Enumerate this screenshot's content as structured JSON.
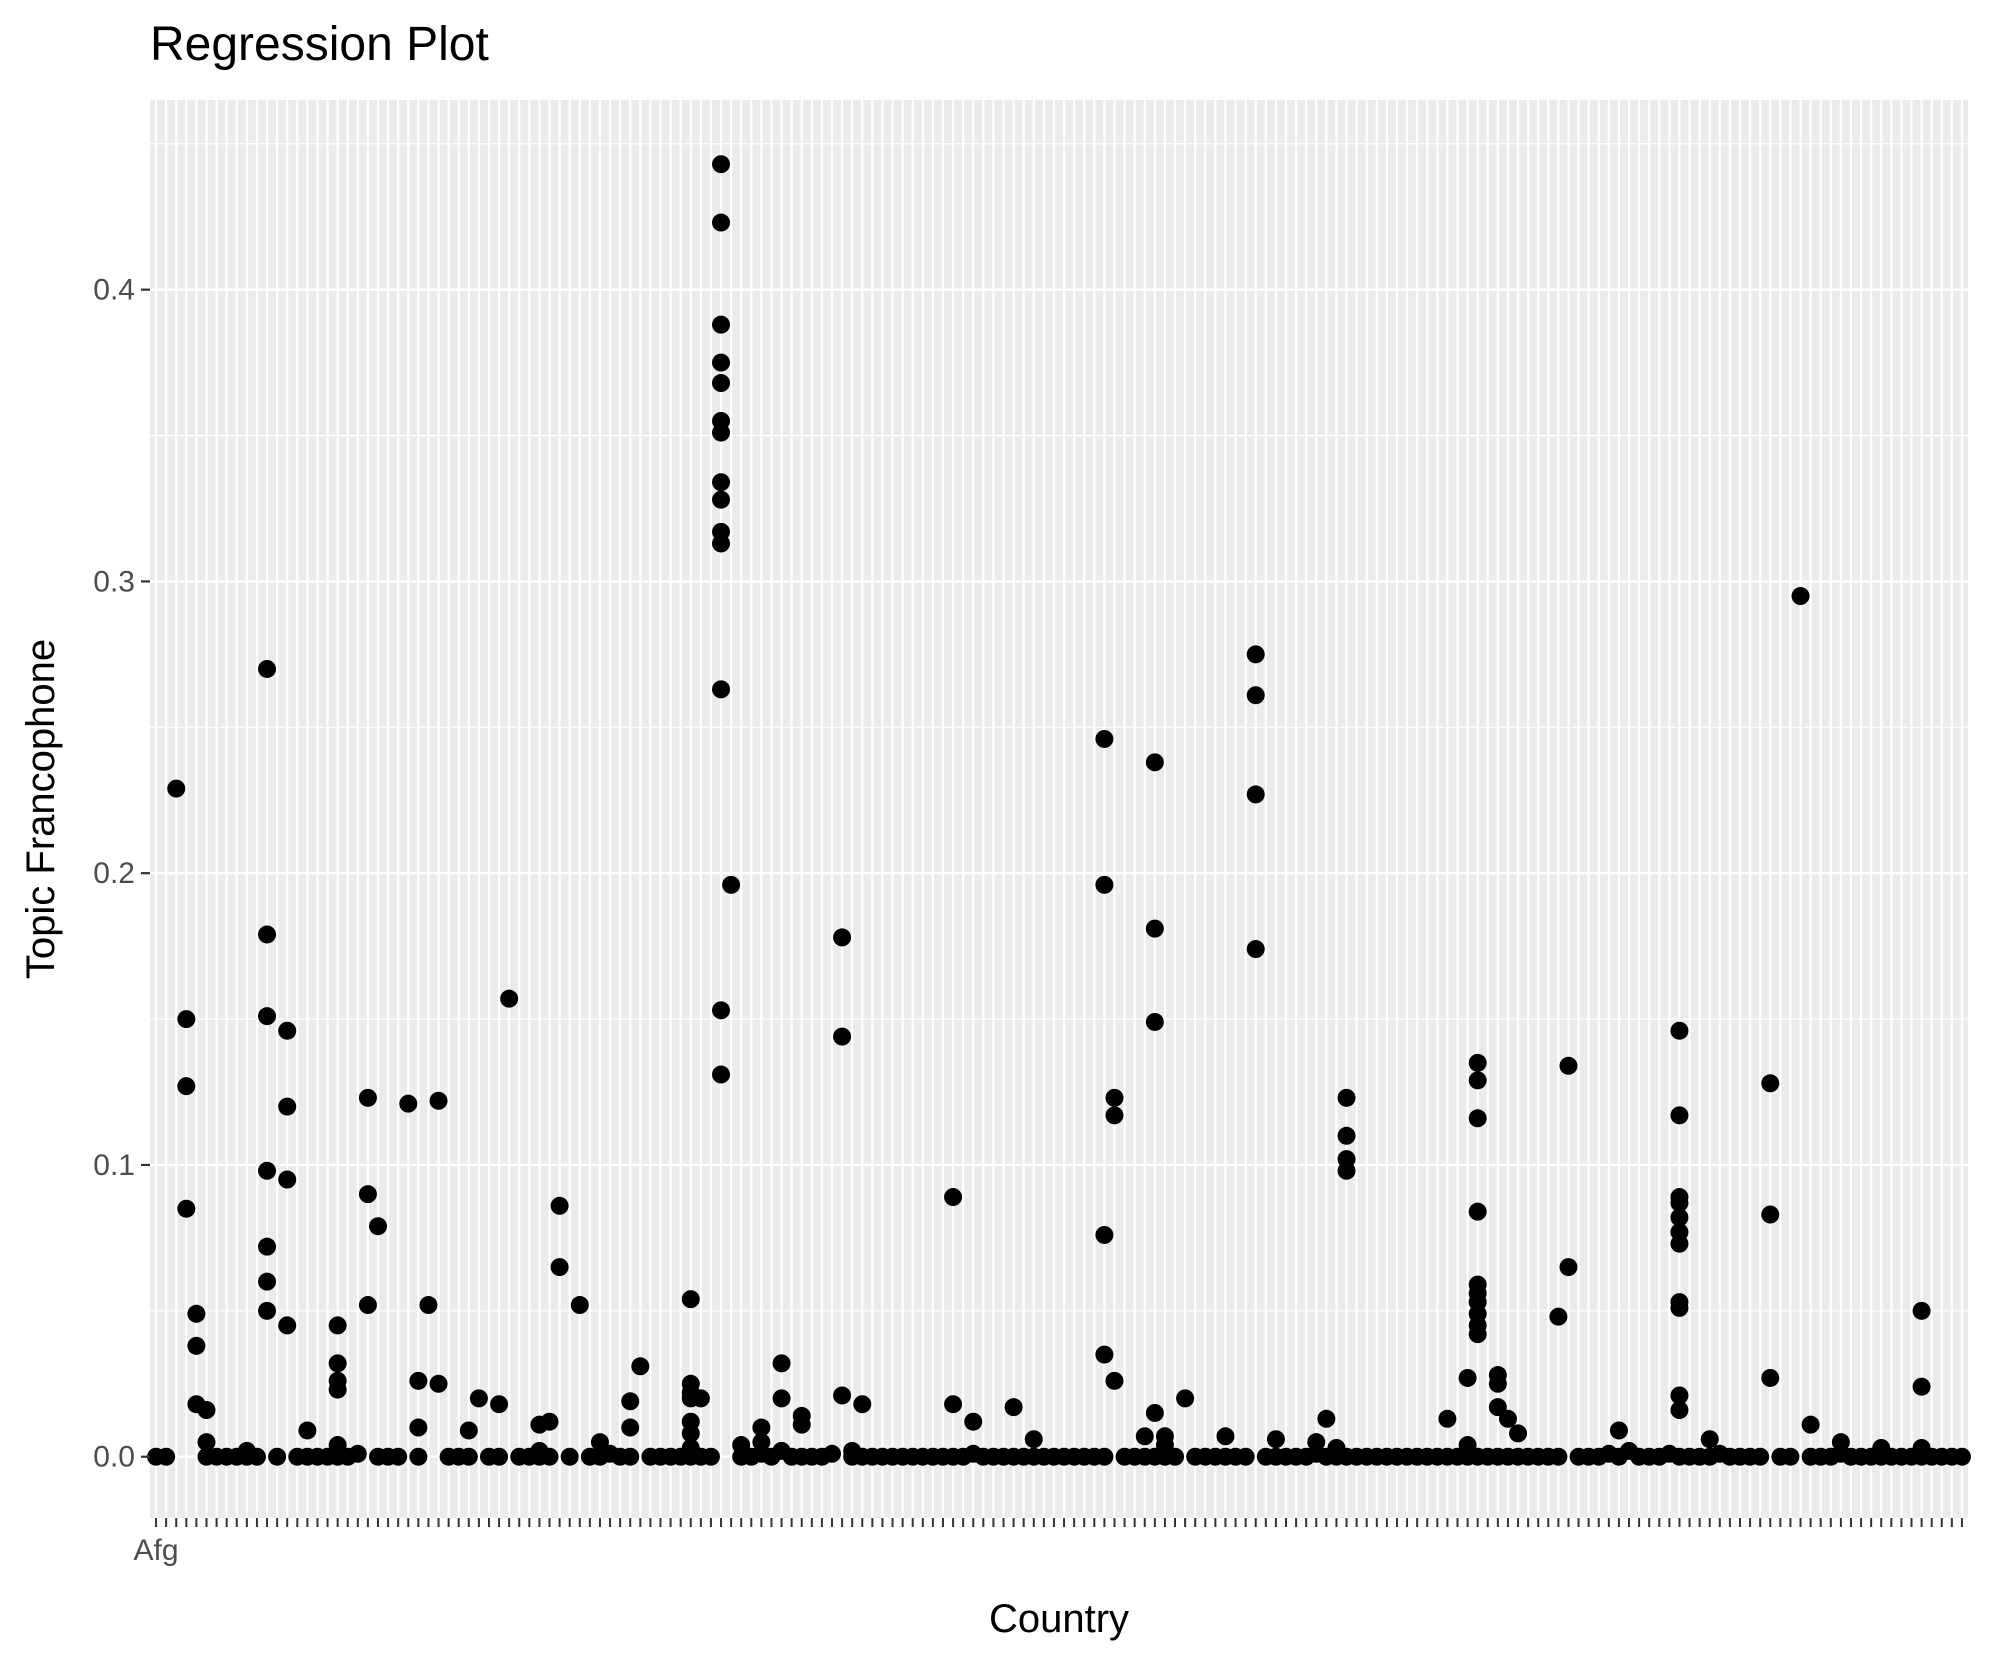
{
  "chart_data": {
    "type": "scatter",
    "title": "Regression Plot",
    "xlabel": "Country",
    "ylabel": "Topic Francophone",
    "ylim": [
      -0.021,
      0.465
    ],
    "y_ticks": [
      0.0,
      0.1,
      0.2,
      0.3,
      0.4
    ],
    "y_tick_labels": [
      "0.0",
      "0.1",
      "0.2",
      "0.3",
      "0.4"
    ],
    "x_category_count": 180,
    "x_first_tick_label": "Afg",
    "grid": true,
    "legend": "none",
    "colors": {
      "panel": "#ebebeb",
      "grid": "#ffffff",
      "point": "#000000",
      "tick_text": "#4d4d4d"
    },
    "points": [
      {
        "x": 0,
        "y": 0
      },
      {
        "x": 1,
        "y": 0
      },
      {
        "x": 2,
        "y": 0.229
      },
      {
        "x": 3,
        "y": 0.15
      },
      {
        "x": 3,
        "y": 0.127
      },
      {
        "x": 3,
        "y": 0.085
      },
      {
        "x": 4,
        "y": 0.049
      },
      {
        "x": 4,
        "y": 0.038
      },
      {
        "x": 4,
        "y": 0.018
      },
      {
        "x": 5,
        "y": 0.016
      },
      {
        "x": 5,
        "y": 0.005
      },
      {
        "x": 5,
        "y": 0
      },
      {
        "x": 6,
        "y": 0
      },
      {
        "x": 7,
        "y": 0
      },
      {
        "x": 8,
        "y": 0
      },
      {
        "x": 9,
        "y": 0.002
      },
      {
        "x": 9,
        "y": 0
      },
      {
        "x": 10,
        "y": 0
      },
      {
        "x": 11,
        "y": 0.27
      },
      {
        "x": 11,
        "y": 0.179
      },
      {
        "x": 11,
        "y": 0.151
      },
      {
        "x": 11,
        "y": 0.098
      },
      {
        "x": 11,
        "y": 0.072
      },
      {
        "x": 11,
        "y": 0.06
      },
      {
        "x": 11,
        "y": 0.05
      },
      {
        "x": 12,
        "y": 0
      },
      {
        "x": 13,
        "y": 0.146
      },
      {
        "x": 13,
        "y": 0.12
      },
      {
        "x": 13,
        "y": 0.095
      },
      {
        "x": 13,
        "y": 0.045
      },
      {
        "x": 14,
        "y": 0
      },
      {
        "x": 15,
        "y": 0.009
      },
      {
        "x": 15,
        "y": 0
      },
      {
        "x": 16,
        "y": 0
      },
      {
        "x": 17,
        "y": 0
      },
      {
        "x": 18,
        "y": 0.045
      },
      {
        "x": 18,
        "y": 0.032
      },
      {
        "x": 18,
        "y": 0.026
      },
      {
        "x": 18,
        "y": 0.023
      },
      {
        "x": 18,
        "y": 0.004
      },
      {
        "x": 18,
        "y": 0
      },
      {
        "x": 19,
        "y": 0
      },
      {
        "x": 20,
        "y": 0.001
      },
      {
        "x": 21,
        "y": 0.123
      },
      {
        "x": 21,
        "y": 0.09
      },
      {
        "x": 21,
        "y": 0.052
      },
      {
        "x": 22,
        "y": 0.079
      },
      {
        "x": 22,
        "y": 0
      },
      {
        "x": 23,
        "y": 0
      },
      {
        "x": 24,
        "y": 0
      },
      {
        "x": 25,
        "y": 0.121
      },
      {
        "x": 26,
        "y": 0.026
      },
      {
        "x": 26,
        "y": 0.01
      },
      {
        "x": 26,
        "y": 0
      },
      {
        "x": 27,
        "y": 0.052
      },
      {
        "x": 28,
        "y": 0.122
      },
      {
        "x": 28,
        "y": 0.025
      },
      {
        "x": 29,
        "y": 0
      },
      {
        "x": 30,
        "y": 0
      },
      {
        "x": 31,
        "y": 0.009
      },
      {
        "x": 31,
        "y": 0
      },
      {
        "x": 32,
        "y": 0.02
      },
      {
        "x": 33,
        "y": 0
      },
      {
        "x": 34,
        "y": 0.018
      },
      {
        "x": 34,
        "y": 0
      },
      {
        "x": 35,
        "y": 0.157
      },
      {
        "x": 36,
        "y": 0
      },
      {
        "x": 37,
        "y": 0
      },
      {
        "x": 38,
        "y": 0.011
      },
      {
        "x": 38,
        "y": 0.002
      },
      {
        "x": 38,
        "y": 0
      },
      {
        "x": 39,
        "y": 0.012
      },
      {
        "x": 39,
        "y": 0
      },
      {
        "x": 40,
        "y": 0.086
      },
      {
        "x": 40,
        "y": 0.065
      },
      {
        "x": 41,
        "y": 0
      },
      {
        "x": 42,
        "y": 0.052
      },
      {
        "x": 43,
        "y": 0
      },
      {
        "x": 44,
        "y": 0.005
      },
      {
        "x": 44,
        "y": 0
      },
      {
        "x": 45,
        "y": 0.001
      },
      {
        "x": 46,
        "y": 0
      },
      {
        "x": 47,
        "y": 0.019
      },
      {
        "x": 47,
        "y": 0.01
      },
      {
        "x": 47,
        "y": 0
      },
      {
        "x": 48,
        "y": 0.031
      },
      {
        "x": 49,
        "y": 0
      },
      {
        "x": 50,
        "y": 0
      },
      {
        "x": 51,
        "y": 0
      },
      {
        "x": 52,
        "y": 0
      },
      {
        "x": 53,
        "y": 0.054
      },
      {
        "x": 53,
        "y": 0.025
      },
      {
        "x": 53,
        "y": 0.022
      },
      {
        "x": 53,
        "y": 0.02
      },
      {
        "x": 53,
        "y": 0.012
      },
      {
        "x": 53,
        "y": 0.008
      },
      {
        "x": 53,
        "y": 0.003
      },
      {
        "x": 53,
        "y": 0
      },
      {
        "x": 54,
        "y": 0.02
      },
      {
        "x": 54,
        "y": 0
      },
      {
        "x": 55,
        "y": 0
      },
      {
        "x": 56,
        "y": 0.443
      },
      {
        "x": 56,
        "y": 0.423
      },
      {
        "x": 56,
        "y": 0.388
      },
      {
        "x": 56,
        "y": 0.375
      },
      {
        "x": 56,
        "y": 0.368
      },
      {
        "x": 56,
        "y": 0.355
      },
      {
        "x": 56,
        "y": 0.351
      },
      {
        "x": 56,
        "y": 0.334
      },
      {
        "x": 56,
        "y": 0.328
      },
      {
        "x": 56,
        "y": 0.317
      },
      {
        "x": 56,
        "y": 0.313
      },
      {
        "x": 56,
        "y": 0.263
      },
      {
        "x": 56,
        "y": 0.153
      },
      {
        "x": 56,
        "y": 0.131
      },
      {
        "x": 57,
        "y": 0.196
      },
      {
        "x": 58,
        "y": 0.004
      },
      {
        "x": 58,
        "y": 0
      },
      {
        "x": 59,
        "y": 0
      },
      {
        "x": 60,
        "y": 0.01
      },
      {
        "x": 60,
        "y": 0.005
      },
      {
        "x": 60,
        "y": 0.001
      },
      {
        "x": 61,
        "y": 0
      },
      {
        "x": 62,
        "y": 0.032
      },
      {
        "x": 62,
        "y": 0.02
      },
      {
        "x": 62,
        "y": 0.002
      },
      {
        "x": 63,
        "y": 0
      },
      {
        "x": 64,
        "y": 0.014
      },
      {
        "x": 64,
        "y": 0.011
      },
      {
        "x": 64,
        "y": 0
      },
      {
        "x": 65,
        "y": 0
      },
      {
        "x": 66,
        "y": 0
      },
      {
        "x": 67,
        "y": 0.001
      },
      {
        "x": 68,
        "y": 0.178
      },
      {
        "x": 68,
        "y": 0.144
      },
      {
        "x": 68,
        "y": 0.021
      },
      {
        "x": 69,
        "y": 0.002
      },
      {
        "x": 69,
        "y": 0
      },
      {
        "x": 70,
        "y": 0.018
      },
      {
        "x": 70,
        "y": 0
      },
      {
        "x": 71,
        "y": 0
      },
      {
        "x": 72,
        "y": 0
      },
      {
        "x": 73,
        "y": 0
      },
      {
        "x": 74,
        "y": 0
      },
      {
        "x": 75,
        "y": 0
      },
      {
        "x": 76,
        "y": 0
      },
      {
        "x": 77,
        "y": 0
      },
      {
        "x": 78,
        "y": 0
      },
      {
        "x": 79,
        "y": 0.089
      },
      {
        "x": 79,
        "y": 0.018
      },
      {
        "x": 79,
        "y": 0
      },
      {
        "x": 80,
        "y": 0
      },
      {
        "x": 81,
        "y": 0.012
      },
      {
        "x": 81,
        "y": 0.001
      },
      {
        "x": 82,
        "y": 0
      },
      {
        "x": 83,
        "y": 0
      },
      {
        "x": 84,
        "y": 0
      },
      {
        "x": 85,
        "y": 0.017
      },
      {
        "x": 85,
        "y": 0
      },
      {
        "x": 86,
        "y": 0
      },
      {
        "x": 87,
        "y": 0.006
      },
      {
        "x": 87,
        "y": 0
      },
      {
        "x": 88,
        "y": 0
      },
      {
        "x": 89,
        "y": 0
      },
      {
        "x": 90,
        "y": 0
      },
      {
        "x": 91,
        "y": 0
      },
      {
        "x": 92,
        "y": 0
      },
      {
        "x": 93,
        "y": 0
      },
      {
        "x": 94,
        "y": 0.246
      },
      {
        "x": 94,
        "y": 0.196
      },
      {
        "x": 94,
        "y": 0.076
      },
      {
        "x": 94,
        "y": 0.035
      },
      {
        "x": 94,
        "y": 0
      },
      {
        "x": 95,
        "y": 0.123
      },
      {
        "x": 95,
        "y": 0.117
      },
      {
        "x": 95,
        "y": 0.026
      },
      {
        "x": 96,
        "y": 0
      },
      {
        "x": 97,
        "y": 0
      },
      {
        "x": 98,
        "y": 0.007
      },
      {
        "x": 98,
        "y": 0
      },
      {
        "x": 99,
        "y": 0.238
      },
      {
        "x": 99,
        "y": 0.181
      },
      {
        "x": 99,
        "y": 0.149
      },
      {
        "x": 99,
        "y": 0.015
      },
      {
        "x": 99,
        "y": 0
      },
      {
        "x": 100,
        "y": 0.007
      },
      {
        "x": 100,
        "y": 0.004
      },
      {
        "x": 100,
        "y": 0
      },
      {
        "x": 101,
        "y": 0
      },
      {
        "x": 102,
        "y": 0.02
      },
      {
        "x": 103,
        "y": 0
      },
      {
        "x": 104,
        "y": 0
      },
      {
        "x": 105,
        "y": 0
      },
      {
        "x": 106,
        "y": 0.007
      },
      {
        "x": 106,
        "y": 0
      },
      {
        "x": 107,
        "y": 0
      },
      {
        "x": 108,
        "y": 0
      },
      {
        "x": 109,
        "y": 0.275
      },
      {
        "x": 109,
        "y": 0.261
      },
      {
        "x": 109,
        "y": 0.227
      },
      {
        "x": 109,
        "y": 0.174
      },
      {
        "x": 110,
        "y": 0
      },
      {
        "x": 111,
        "y": 0.006
      },
      {
        "x": 111,
        "y": 0
      },
      {
        "x": 112,
        "y": 0
      },
      {
        "x": 113,
        "y": 0
      },
      {
        "x": 114,
        "y": 0
      },
      {
        "x": 115,
        "y": 0.005
      },
      {
        "x": 115,
        "y": 0.001
      },
      {
        "x": 116,
        "y": 0.013
      },
      {
        "x": 116,
        "y": 0
      },
      {
        "x": 117,
        "y": 0.003
      },
      {
        "x": 117,
        "y": 0
      },
      {
        "x": 118,
        "y": 0.123
      },
      {
        "x": 118,
        "y": 0.11
      },
      {
        "x": 118,
        "y": 0.102
      },
      {
        "x": 118,
        "y": 0.098
      },
      {
        "x": 118,
        "y": 0
      },
      {
        "x": 119,
        "y": 0
      },
      {
        "x": 120,
        "y": 0
      },
      {
        "x": 121,
        "y": 0
      },
      {
        "x": 122,
        "y": 0
      },
      {
        "x": 123,
        "y": 0
      },
      {
        "x": 124,
        "y": 0
      },
      {
        "x": 125,
        "y": 0
      },
      {
        "x": 126,
        "y": 0
      },
      {
        "x": 127,
        "y": 0
      },
      {
        "x": 128,
        "y": 0.013
      },
      {
        "x": 128,
        "y": 0
      },
      {
        "x": 129,
        "y": 0
      },
      {
        "x": 130,
        "y": 0.027
      },
      {
        "x": 130,
        "y": 0.004
      },
      {
        "x": 130,
        "y": 0
      },
      {
        "x": 131,
        "y": 0.135
      },
      {
        "x": 131,
        "y": 0.129
      },
      {
        "x": 131,
        "y": 0.116
      },
      {
        "x": 131,
        "y": 0.084
      },
      {
        "x": 131,
        "y": 0.059
      },
      {
        "x": 131,
        "y": 0.056
      },
      {
        "x": 131,
        "y": 0.053
      },
      {
        "x": 131,
        "y": 0.049
      },
      {
        "x": 131,
        "y": 0.045
      },
      {
        "x": 131,
        "y": 0.042
      },
      {
        "x": 131,
        "y": 0
      },
      {
        "x": 132,
        "y": 0
      },
      {
        "x": 133,
        "y": 0.028
      },
      {
        "x": 133,
        "y": 0.025
      },
      {
        "x": 133,
        "y": 0.017
      },
      {
        "x": 133,
        "y": 0
      },
      {
        "x": 134,
        "y": 0.013
      },
      {
        "x": 134,
        "y": 0
      },
      {
        "x": 135,
        "y": 0.008
      },
      {
        "x": 135,
        "y": 0
      },
      {
        "x": 136,
        "y": 0
      },
      {
        "x": 137,
        "y": 0
      },
      {
        "x": 138,
        "y": 0
      },
      {
        "x": 139,
        "y": 0.048
      },
      {
        "x": 139,
        "y": 0
      },
      {
        "x": 140,
        "y": 0.134
      },
      {
        "x": 140,
        "y": 0.065
      },
      {
        "x": 141,
        "y": 0
      },
      {
        "x": 142,
        "y": 0
      },
      {
        "x": 143,
        "y": 0
      },
      {
        "x": 144,
        "y": 0.001
      },
      {
        "x": 145,
        "y": 0.009
      },
      {
        "x": 145,
        "y": 0
      },
      {
        "x": 146,
        "y": 0.002
      },
      {
        "x": 147,
        "y": 0
      },
      {
        "x": 148,
        "y": 0
      },
      {
        "x": 149,
        "y": 0
      },
      {
        "x": 150,
        "y": 0.001
      },
      {
        "x": 151,
        "y": 0.146
      },
      {
        "x": 151,
        "y": 0.117
      },
      {
        "x": 151,
        "y": 0.089
      },
      {
        "x": 151,
        "y": 0.087
      },
      {
        "x": 151,
        "y": 0.082
      },
      {
        "x": 151,
        "y": 0.077
      },
      {
        "x": 151,
        "y": 0.073
      },
      {
        "x": 151,
        "y": 0.053
      },
      {
        "x": 151,
        "y": 0.051
      },
      {
        "x": 151,
        "y": 0.021
      },
      {
        "x": 151,
        "y": 0.016
      },
      {
        "x": 151,
        "y": 0
      },
      {
        "x": 152,
        "y": 0
      },
      {
        "x": 153,
        "y": 0
      },
      {
        "x": 154,
        "y": 0.006
      },
      {
        "x": 154,
        "y": 0
      },
      {
        "x": 155,
        "y": 0.001
      },
      {
        "x": 156,
        "y": 0
      },
      {
        "x": 157,
        "y": 0
      },
      {
        "x": 158,
        "y": 0
      },
      {
        "x": 159,
        "y": 0
      },
      {
        "x": 160,
        "y": 0.128
      },
      {
        "x": 160,
        "y": 0.083
      },
      {
        "x": 160,
        "y": 0.027
      },
      {
        "x": 161,
        "y": 0
      },
      {
        "x": 162,
        "y": 0
      },
      {
        "x": 163,
        "y": 0.295
      },
      {
        "x": 164,
        "y": 0.011
      },
      {
        "x": 164,
        "y": 0
      },
      {
        "x": 165,
        "y": 0
      },
      {
        "x": 166,
        "y": 0
      },
      {
        "x": 167,
        "y": 0.005
      },
      {
        "x": 167,
        "y": 0.001
      },
      {
        "x": 168,
        "y": 0
      },
      {
        "x": 169,
        "y": 0
      },
      {
        "x": 170,
        "y": 0
      },
      {
        "x": 171,
        "y": 0.003
      },
      {
        "x": 171,
        "y": 0
      },
      {
        "x": 172,
        "y": 0
      },
      {
        "x": 173,
        "y": 0
      },
      {
        "x": 174,
        "y": 0
      },
      {
        "x": 175,
        "y": 0.05
      },
      {
        "x": 175,
        "y": 0.024
      },
      {
        "x": 175,
        "y": 0.003
      },
      {
        "x": 175,
        "y": 0
      },
      {
        "x": 176,
        "y": 0
      },
      {
        "x": 177,
        "y": 0
      },
      {
        "x": 178,
        "y": 0
      },
      {
        "x": 179,
        "y": 0
      }
    ]
  }
}
